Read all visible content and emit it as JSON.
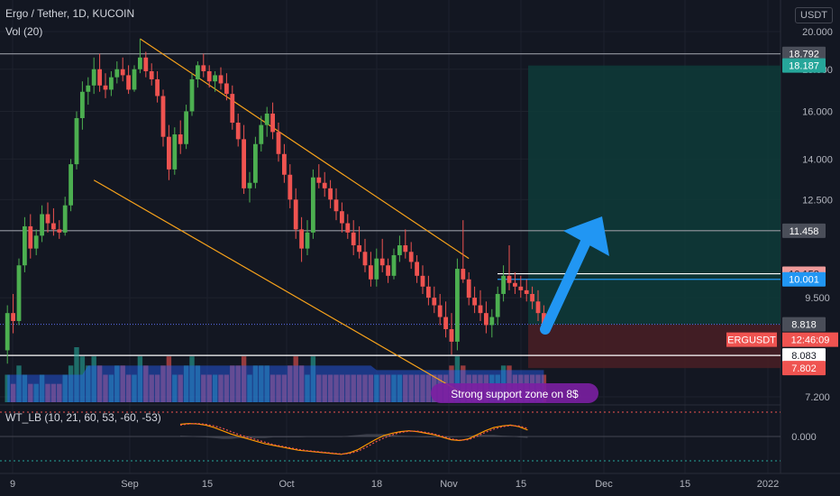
{
  "header": {
    "title": "Ergo / Tether, 1D, KUCOIN",
    "volume_label": "Vol (20)",
    "indicator_label": "WT_LB (10, 21, 60, 53, -60, -53)",
    "currency": "USDT"
  },
  "colors": {
    "bg": "#131722",
    "grid": "#1e222d",
    "up": "#26a69a",
    "up_candle": "#4caf50",
    "down": "#ef5350",
    "channel": "#f7a21b",
    "arrow": "#2196f3",
    "target_zone": "#0e3b38",
    "stop_zone": "#4a1f25",
    "text": "#b2b5be",
    "white_line": "#ffffff",
    "gray_line": "#9598a1"
  },
  "chart_data": {
    "type": "candlestick",
    "title": "Ergo / Tether, 1D, KUCOIN",
    "x_ticks": [
      "9",
      "Sep",
      "15",
      "Oct",
      "18",
      "Nov",
      "15",
      "Dec",
      "15",
      "2022"
    ],
    "y_ticks": [
      20.0,
      18.0,
      16.0,
      14.0,
      12.5,
      9.5,
      7.2
    ],
    "y_scale": "log",
    "ylim": [
      7.0,
      21.0
    ],
    "price_levels": [
      {
        "label": "18.792",
        "value": 18.792,
        "style": "gray-line"
      },
      {
        "label": "18.187",
        "value": 18.187,
        "style": "target"
      },
      {
        "label": "11.458",
        "value": 11.458,
        "style": "gray-line"
      },
      {
        "label": "10.158",
        "value": 10.158,
        "style": "entry-high"
      },
      {
        "label": "10.001",
        "value": 10.001,
        "style": "entry"
      },
      {
        "label": "8.818",
        "value": 8.818,
        "style": "last"
      },
      {
        "label": "8.083",
        "value": 8.083,
        "style": "white-line"
      },
      {
        "label": "7.802",
        "value": 7.802,
        "style": "stop"
      }
    ],
    "symbol_tag": "ERGUSDT",
    "countdown": "12:46:09",
    "last_price": 8.818,
    "annotation": "Strong support zone on 8$",
    "candles": [
      [
        8.2,
        9.3,
        7.9,
        9.1
      ],
      [
        9.1,
        9.6,
        8.6,
        8.9
      ],
      [
        8.9,
        10.6,
        8.8,
        10.4
      ],
      [
        10.4,
        11.9,
        10.2,
        11.6
      ],
      [
        11.6,
        12.0,
        10.6,
        10.9
      ],
      [
        10.9,
        11.5,
        10.7,
        11.3
      ],
      [
        11.3,
        12.3,
        11.1,
        12.0
      ],
      [
        12.0,
        12.4,
        11.4,
        11.7
      ],
      [
        11.7,
        12.2,
        11.3,
        11.5
      ],
      [
        11.5,
        11.8,
        11.2,
        11.4
      ],
      [
        11.4,
        12.6,
        11.3,
        12.3
      ],
      [
        12.3,
        14.0,
        12.1,
        13.8
      ],
      [
        13.8,
        16.0,
        13.6,
        15.7
      ],
      [
        15.7,
        17.4,
        15.2,
        16.9
      ],
      [
        16.9,
        17.6,
        16.3,
        17.2
      ],
      [
        17.2,
        18.6,
        16.8,
        18.0
      ],
      [
        18.0,
        18.8,
        16.9,
        17.2
      ],
      [
        17.2,
        17.8,
        16.6,
        17.0
      ],
      [
        17.0,
        17.9,
        16.7,
        17.6
      ],
      [
        17.6,
        18.4,
        17.3,
        18.0
      ],
      [
        18.0,
        18.6,
        17.4,
        17.7
      ],
      [
        17.7,
        18.2,
        16.8,
        17.0
      ],
      [
        17.0,
        18.2,
        16.9,
        18.0
      ],
      [
        18.0,
        19.6,
        17.8,
        18.6
      ],
      [
        18.6,
        18.9,
        17.6,
        17.9
      ],
      [
        17.9,
        18.3,
        17.2,
        17.5
      ],
      [
        17.5,
        17.9,
        16.4,
        16.7
      ],
      [
        16.7,
        17.0,
        14.5,
        14.9
      ],
      [
        14.9,
        15.4,
        13.2,
        13.6
      ],
      [
        13.6,
        15.3,
        13.4,
        15.0
      ],
      [
        15.0,
        15.6,
        14.2,
        14.6
      ],
      [
        14.6,
        16.3,
        14.4,
        16.0
      ],
      [
        16.0,
        17.8,
        15.8,
        17.5
      ],
      [
        17.5,
        18.4,
        17.1,
        18.2
      ],
      [
        18.2,
        18.8,
        17.6,
        17.9
      ],
      [
        17.9,
        18.2,
        17.1,
        17.4
      ],
      [
        17.4,
        17.9,
        16.9,
        17.7
      ],
      [
        17.7,
        18.1,
        17.0,
        17.3
      ],
      [
        17.3,
        17.8,
        16.5,
        16.8
      ],
      [
        16.8,
        17.2,
        15.2,
        15.5
      ],
      [
        15.5,
        15.9,
        14.5,
        14.8
      ],
      [
        14.8,
        15.4,
        12.7,
        12.9
      ],
      [
        12.9,
        13.5,
        12.4,
        13.1
      ],
      [
        13.1,
        14.9,
        12.9,
        14.6
      ],
      [
        14.6,
        15.8,
        14.3,
        15.4
      ],
      [
        15.4,
        16.2,
        14.9,
        15.9
      ],
      [
        15.9,
        16.4,
        14.8,
        15.1
      ],
      [
        15.1,
        15.5,
        13.9,
        14.2
      ],
      [
        14.2,
        14.6,
        13.1,
        13.4
      ],
      [
        13.4,
        13.8,
        12.2,
        12.5
      ],
      [
        12.5,
        12.9,
        11.2,
        11.5
      ],
      [
        11.5,
        11.9,
        10.5,
        10.9
      ],
      [
        10.9,
        11.8,
        10.7,
        11.4
      ],
      [
        11.4,
        13.6,
        11.2,
        13.3
      ],
      [
        13.3,
        13.8,
        12.9,
        13.1
      ],
      [
        13.1,
        13.5,
        12.6,
        12.9
      ],
      [
        12.9,
        13.2,
        12.2,
        12.5
      ],
      [
        12.5,
        12.9,
        11.8,
        12.1
      ],
      [
        12.1,
        12.4,
        11.4,
        11.7
      ],
      [
        11.7,
        12.0,
        11.2,
        11.4
      ],
      [
        11.4,
        11.8,
        10.7,
        11.0
      ],
      [
        11.0,
        11.6,
        10.6,
        10.8
      ],
      [
        10.8,
        11.2,
        10.2,
        10.4
      ],
      [
        10.4,
        10.8,
        9.8,
        10.0
      ],
      [
        10.0,
        10.9,
        9.8,
        10.6
      ],
      [
        10.6,
        11.2,
        10.2,
        10.4
      ],
      [
        10.4,
        10.6,
        9.9,
        10.1
      ],
      [
        10.1,
        10.9,
        10.0,
        10.7
      ],
      [
        10.7,
        11.3,
        10.5,
        11.0
      ],
      [
        11.0,
        11.5,
        10.6,
        10.8
      ],
      [
        10.8,
        11.1,
        10.3,
        10.5
      ],
      [
        10.5,
        10.7,
        9.9,
        10.1
      ],
      [
        10.1,
        10.4,
        9.6,
        9.8
      ],
      [
        9.8,
        10.1,
        9.3,
        9.5
      ],
      [
        9.5,
        9.8,
        9.1,
        9.3
      ],
      [
        9.3,
        9.6,
        8.8,
        9.0
      ],
      [
        9.0,
        9.4,
        8.5,
        8.7
      ],
      [
        8.7,
        9.1,
        8.1,
        8.4
      ],
      [
        8.4,
        10.6,
        8.2,
        10.3
      ],
      [
        10.3,
        11.8,
        9.9,
        10.0
      ],
      [
        10.0,
        10.2,
        9.3,
        9.5
      ],
      [
        9.5,
        9.8,
        9.1,
        9.3
      ],
      [
        9.3,
        9.7,
        8.9,
        9.1
      ],
      [
        9.1,
        9.4,
        8.6,
        8.8
      ],
      [
        8.8,
        9.2,
        8.5,
        9.0
      ],
      [
        9.0,
        9.8,
        8.8,
        9.6
      ],
      [
        9.6,
        10.4,
        9.4,
        10.1
      ],
      [
        10.1,
        11.0,
        9.7,
        9.9
      ],
      [
        9.9,
        10.2,
        9.6,
        9.8
      ],
      [
        9.8,
        10.1,
        9.5,
        9.7
      ],
      [
        9.7,
        10.0,
        9.4,
        9.6
      ],
      [
        9.6,
        9.8,
        9.2,
        9.4
      ],
      [
        9.4,
        9.7,
        8.9,
        9.1
      ],
      [
        9.1,
        9.3,
        8.6,
        8.8
      ]
    ],
    "volumes": [
      3,
      2,
      4,
      3,
      2,
      2,
      3,
      2,
      2,
      2,
      3,
      4,
      6,
      5,
      4,
      5,
      4,
      3,
      3,
      4,
      4,
      3,
      3,
      5,
      4,
      3,
      3,
      4,
      5,
      3,
      3,
      4,
      5,
      4,
      3,
      3,
      3,
      3,
      3,
      4,
      4,
      5,
      3,
      4,
      4,
      4,
      3,
      3,
      3,
      4,
      5,
      4,
      3,
      5,
      3,
      3,
      3,
      3,
      3,
      3,
      3,
      3,
      3,
      3,
      3,
      3,
      3,
      3,
      3,
      3,
      3,
      3,
      3,
      3,
      3,
      3,
      3,
      4,
      5,
      4,
      3,
      3,
      3,
      3,
      3,
      3,
      4,
      4,
      3,
      3,
      3,
      3,
      3,
      3
    ],
    "volume_ma": [
      3,
      3,
      3,
      3,
      3,
      3,
      3,
      3,
      3,
      3,
      3,
      3,
      3,
      3,
      4,
      4,
      4,
      4,
      4,
      4,
      4,
      4,
      4,
      4,
      4,
      4,
      4,
      4,
      4,
      4,
      4,
      4,
      4,
      4,
      4,
      4,
      4,
      4,
      4,
      4,
      4,
      4,
      4,
      4,
      4,
      4,
      4,
      4,
      4,
      4,
      4,
      4,
      4,
      4,
      4,
      4,
      4,
      4,
      4,
      4,
      4,
      4,
      4,
      4,
      3.5,
      3.5,
      3.5,
      3.5,
      3.5,
      3.5,
      3.5,
      3.5,
      3.5,
      3.5,
      3.5,
      3.5,
      3.5,
      3.5,
      3.5,
      3.5,
      3.5,
      3.5,
      3.5,
      3.5,
      3.5,
      3.5,
      3.5,
      3.5,
      3.5,
      3.5,
      3.5,
      3.5,
      3.5,
      3.5
    ],
    "channel": {
      "upper": [
        [
          23,
          19.6
        ],
        [
          80,
          10.6
        ]
      ],
      "lower": [
        [
          15,
          13.2
        ],
        [
          80,
          7.2
        ]
      ]
    },
    "indicator": {
      "y_ticks": [
        0.0
      ],
      "wt1": [
        30,
        32,
        31,
        28,
        22,
        14,
        6,
        0,
        -6,
        -12,
        -18,
        -22,
        -26,
        -30,
        -34,
        -36,
        -38,
        -40,
        -42,
        -44,
        -40,
        -32,
        -20,
        -8,
        2,
        8,
        12,
        14,
        12,
        8,
        4,
        -2,
        -8,
        -10,
        -6,
        4,
        14,
        22,
        26,
        28,
        24,
        16
      ],
      "wt2": [
        28,
        31,
        32,
        30,
        26,
        20,
        12,
        4,
        -2,
        -8,
        -14,
        -20,
        -24,
        -28,
        -32,
        -35,
        -37,
        -39,
        -41,
        -43,
        -42,
        -36,
        -26,
        -14,
        -4,
        4,
        10,
        13,
        13,
        10,
        6,
        0,
        -6,
        -9,
        -8,
        0,
        10,
        18,
        24,
        27,
        26,
        20
      ]
    }
  }
}
